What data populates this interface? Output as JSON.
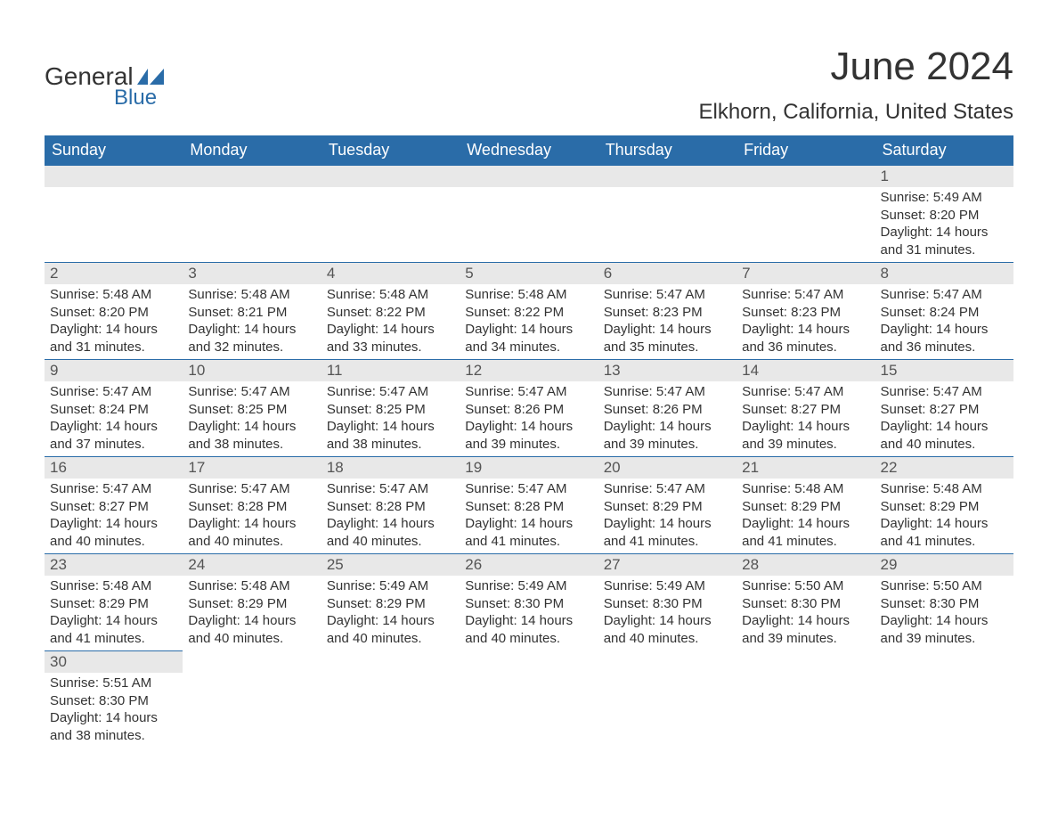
{
  "logo": {
    "text_top": "General",
    "text_bottom": "Blue",
    "flag_color": "#2a6ca8"
  },
  "title": "June 2024",
  "location": "Elkhorn, California, United States",
  "colors": {
    "header_bg": "#2a6ca8",
    "header_fg": "#ffffff",
    "daynum_bg": "#e8e8e8",
    "border": "#2a6ca8",
    "text": "#333333"
  },
  "weekdays": [
    "Sunday",
    "Monday",
    "Tuesday",
    "Wednesday",
    "Thursday",
    "Friday",
    "Saturday"
  ],
  "labels": {
    "sunrise": "Sunrise:",
    "sunset": "Sunset:",
    "daylight": "Daylight:"
  },
  "weeks": [
    [
      null,
      null,
      null,
      null,
      null,
      null,
      {
        "n": "1",
        "sr": "5:49 AM",
        "ss": "8:20 PM",
        "dl": "14 hours and 31 minutes."
      }
    ],
    [
      {
        "n": "2",
        "sr": "5:48 AM",
        "ss": "8:20 PM",
        "dl": "14 hours and 31 minutes."
      },
      {
        "n": "3",
        "sr": "5:48 AM",
        "ss": "8:21 PM",
        "dl": "14 hours and 32 minutes."
      },
      {
        "n": "4",
        "sr": "5:48 AM",
        "ss": "8:22 PM",
        "dl": "14 hours and 33 minutes."
      },
      {
        "n": "5",
        "sr": "5:48 AM",
        "ss": "8:22 PM",
        "dl": "14 hours and 34 minutes."
      },
      {
        "n": "6",
        "sr": "5:47 AM",
        "ss": "8:23 PM",
        "dl": "14 hours and 35 minutes."
      },
      {
        "n": "7",
        "sr": "5:47 AM",
        "ss": "8:23 PM",
        "dl": "14 hours and 36 minutes."
      },
      {
        "n": "8",
        "sr": "5:47 AM",
        "ss": "8:24 PM",
        "dl": "14 hours and 36 minutes."
      }
    ],
    [
      {
        "n": "9",
        "sr": "5:47 AM",
        "ss": "8:24 PM",
        "dl": "14 hours and 37 minutes."
      },
      {
        "n": "10",
        "sr": "5:47 AM",
        "ss": "8:25 PM",
        "dl": "14 hours and 38 minutes."
      },
      {
        "n": "11",
        "sr": "5:47 AM",
        "ss": "8:25 PM",
        "dl": "14 hours and 38 minutes."
      },
      {
        "n": "12",
        "sr": "5:47 AM",
        "ss": "8:26 PM",
        "dl": "14 hours and 39 minutes."
      },
      {
        "n": "13",
        "sr": "5:47 AM",
        "ss": "8:26 PM",
        "dl": "14 hours and 39 minutes."
      },
      {
        "n": "14",
        "sr": "5:47 AM",
        "ss": "8:27 PM",
        "dl": "14 hours and 39 minutes."
      },
      {
        "n": "15",
        "sr": "5:47 AM",
        "ss": "8:27 PM",
        "dl": "14 hours and 40 minutes."
      }
    ],
    [
      {
        "n": "16",
        "sr": "5:47 AM",
        "ss": "8:27 PM",
        "dl": "14 hours and 40 minutes."
      },
      {
        "n": "17",
        "sr": "5:47 AM",
        "ss": "8:28 PM",
        "dl": "14 hours and 40 minutes."
      },
      {
        "n": "18",
        "sr": "5:47 AM",
        "ss": "8:28 PM",
        "dl": "14 hours and 40 minutes."
      },
      {
        "n": "19",
        "sr": "5:47 AM",
        "ss": "8:28 PM",
        "dl": "14 hours and 41 minutes."
      },
      {
        "n": "20",
        "sr": "5:47 AM",
        "ss": "8:29 PM",
        "dl": "14 hours and 41 minutes."
      },
      {
        "n": "21",
        "sr": "5:48 AM",
        "ss": "8:29 PM",
        "dl": "14 hours and 41 minutes."
      },
      {
        "n": "22",
        "sr": "5:48 AM",
        "ss": "8:29 PM",
        "dl": "14 hours and 41 minutes."
      }
    ],
    [
      {
        "n": "23",
        "sr": "5:48 AM",
        "ss": "8:29 PM",
        "dl": "14 hours and 41 minutes."
      },
      {
        "n": "24",
        "sr": "5:48 AM",
        "ss": "8:29 PM",
        "dl": "14 hours and 40 minutes."
      },
      {
        "n": "25",
        "sr": "5:49 AM",
        "ss": "8:29 PM",
        "dl": "14 hours and 40 minutes."
      },
      {
        "n": "26",
        "sr": "5:49 AM",
        "ss": "8:30 PM",
        "dl": "14 hours and 40 minutes."
      },
      {
        "n": "27",
        "sr": "5:49 AM",
        "ss": "8:30 PM",
        "dl": "14 hours and 40 minutes."
      },
      {
        "n": "28",
        "sr": "5:50 AM",
        "ss": "8:30 PM",
        "dl": "14 hours and 39 minutes."
      },
      {
        "n": "29",
        "sr": "5:50 AM",
        "ss": "8:30 PM",
        "dl": "14 hours and 39 minutes."
      }
    ],
    [
      {
        "n": "30",
        "sr": "5:51 AM",
        "ss": "8:30 PM",
        "dl": "14 hours and 38 minutes."
      },
      null,
      null,
      null,
      null,
      null,
      null
    ]
  ]
}
